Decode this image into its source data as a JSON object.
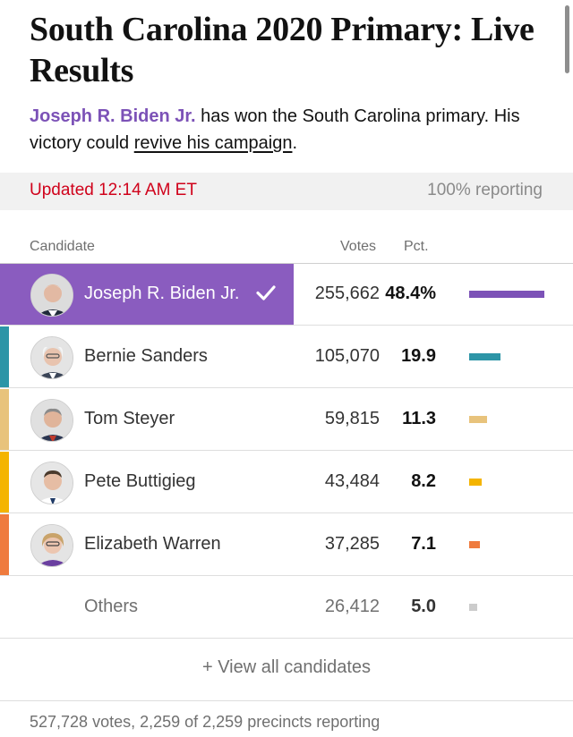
{
  "headline": "South Carolina 2020 Primary: Live Results",
  "summary": {
    "winner_name": "Joseph R. Biden Jr.",
    "text_1": " has won the South Carolina primary. His victory could ",
    "link_text": "revive his campaign",
    "text_2": "."
  },
  "status": {
    "updated": "Updated 12:14 AM ET",
    "reporting": "100% reporting"
  },
  "table": {
    "headers": {
      "candidate": "Candidate",
      "votes": "Votes",
      "pct": "Pct."
    },
    "rows": [
      {
        "name": "Joseph R. Biden Jr.",
        "votes": "255,662",
        "pct": "48.4%",
        "pct_value": 48.4,
        "color": "#7c52b7",
        "winner": true,
        "avatar": "biden-avatar"
      },
      {
        "name": "Bernie Sanders",
        "votes": "105,070",
        "pct": "19.9",
        "pct_value": 19.9,
        "color": "#2d95a7",
        "winner": false,
        "avatar": "sanders-avatar"
      },
      {
        "name": "Tom Steyer",
        "votes": "59,815",
        "pct": "11.3",
        "pct_value": 11.3,
        "color": "#e8c37c",
        "winner": false,
        "avatar": "steyer-avatar"
      },
      {
        "name": "Pete Buttigieg",
        "votes": "43,484",
        "pct": "8.2",
        "pct_value": 8.2,
        "color": "#f4b400",
        "winner": false,
        "avatar": "buttigieg-avatar"
      },
      {
        "name": "Elizabeth Warren",
        "votes": "37,285",
        "pct": "7.1",
        "pct_value": 7.1,
        "color": "#ef7b3e",
        "winner": false,
        "avatar": "warren-avatar"
      },
      {
        "name": "Others",
        "votes": "26,412",
        "pct": "5.0",
        "pct_value": 5.0,
        "color": "#cccccc",
        "winner": false,
        "avatar": null
      }
    ]
  },
  "view_all": "+ View all candidates",
  "footer": "527,728 votes, 2,259 of 2,259 precincts reporting"
}
